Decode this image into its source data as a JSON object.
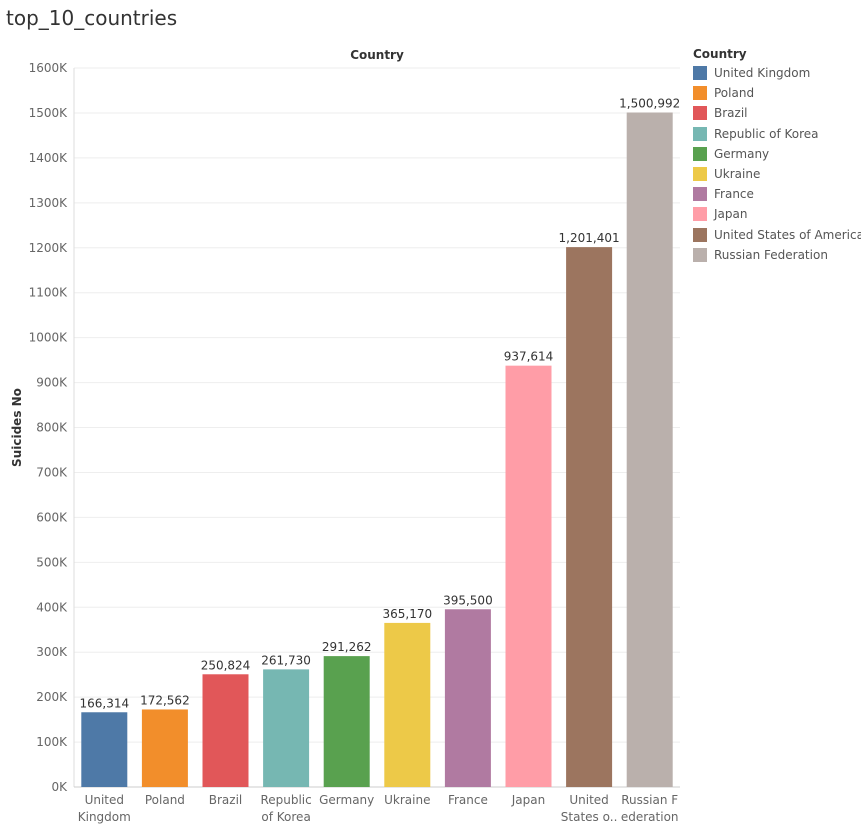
{
  "sheet_title": "top_10_countries",
  "chart_data": {
    "type": "bar",
    "column_header": "Country",
    "ylabel": "Suicides No",
    "ylim": [
      0,
      1600000
    ],
    "yticks": [
      0,
      100000,
      200000,
      300000,
      400000,
      500000,
      600000,
      700000,
      800000,
      900000,
      1000000,
      1100000,
      1200000,
      1300000,
      1400000,
      1500000,
      1600000
    ],
    "ytick_labels": [
      "0K",
      "100K",
      "200K",
      "300K",
      "400K",
      "500K",
      "600K",
      "700K",
      "800K",
      "900K",
      "1000K",
      "1100K",
      "1200K",
      "1300K",
      "1400K",
      "1500K",
      "1600K"
    ],
    "categories": [
      "United Kingdom",
      "Poland",
      "Brazil",
      "Republic of Korea",
      "Germany",
      "Ukraine",
      "France",
      "Japan",
      "United States of America",
      "Russian Federation"
    ],
    "category_tick_labels": [
      [
        "United",
        "Kingdom"
      ],
      [
        "Poland"
      ],
      [
        "Brazil"
      ],
      [
        "Republic",
        "of Korea"
      ],
      [
        "Germany"
      ],
      [
        "Ukraine"
      ],
      [
        "France"
      ],
      [
        "Japan"
      ],
      [
        "United",
        "States o.."
      ],
      [
        "Russian F",
        "ederation"
      ]
    ],
    "values": [
      166314,
      172562,
      250824,
      261730,
      291262,
      365170,
      395500,
      937614,
      1201401,
      1500992
    ],
    "value_labels": [
      "166,314",
      "172,562",
      "250,824",
      "261,730",
      "291,262",
      "365,170",
      "395,500",
      "937,614",
      "1,201,401",
      "1,500,992"
    ],
    "colors": [
      "#4e79a7",
      "#f28e2b",
      "#e15759",
      "#76b7b2",
      "#59a14f",
      "#edc948",
      "#b07aa1",
      "#ff9da7",
      "#9c755f",
      "#bab0ac"
    ],
    "grid": true,
    "legend": {
      "title": "Country",
      "position": "right",
      "items": [
        {
          "label": "United Kingdom",
          "color": "#4e79a7"
        },
        {
          "label": "Poland",
          "color": "#f28e2b"
        },
        {
          "label": "Brazil",
          "color": "#e15759"
        },
        {
          "label": "Republic of Korea",
          "color": "#76b7b2"
        },
        {
          "label": "Germany",
          "color": "#59a14f"
        },
        {
          "label": "Ukraine",
          "color": "#edc948"
        },
        {
          "label": "France",
          "color": "#b07aa1"
        },
        {
          "label": "Japan",
          "color": "#ff9da7"
        },
        {
          "label": "United States of America",
          "color": "#9c755f"
        },
        {
          "label": "Russian Federation",
          "color": "#bab0ac"
        }
      ]
    }
  }
}
